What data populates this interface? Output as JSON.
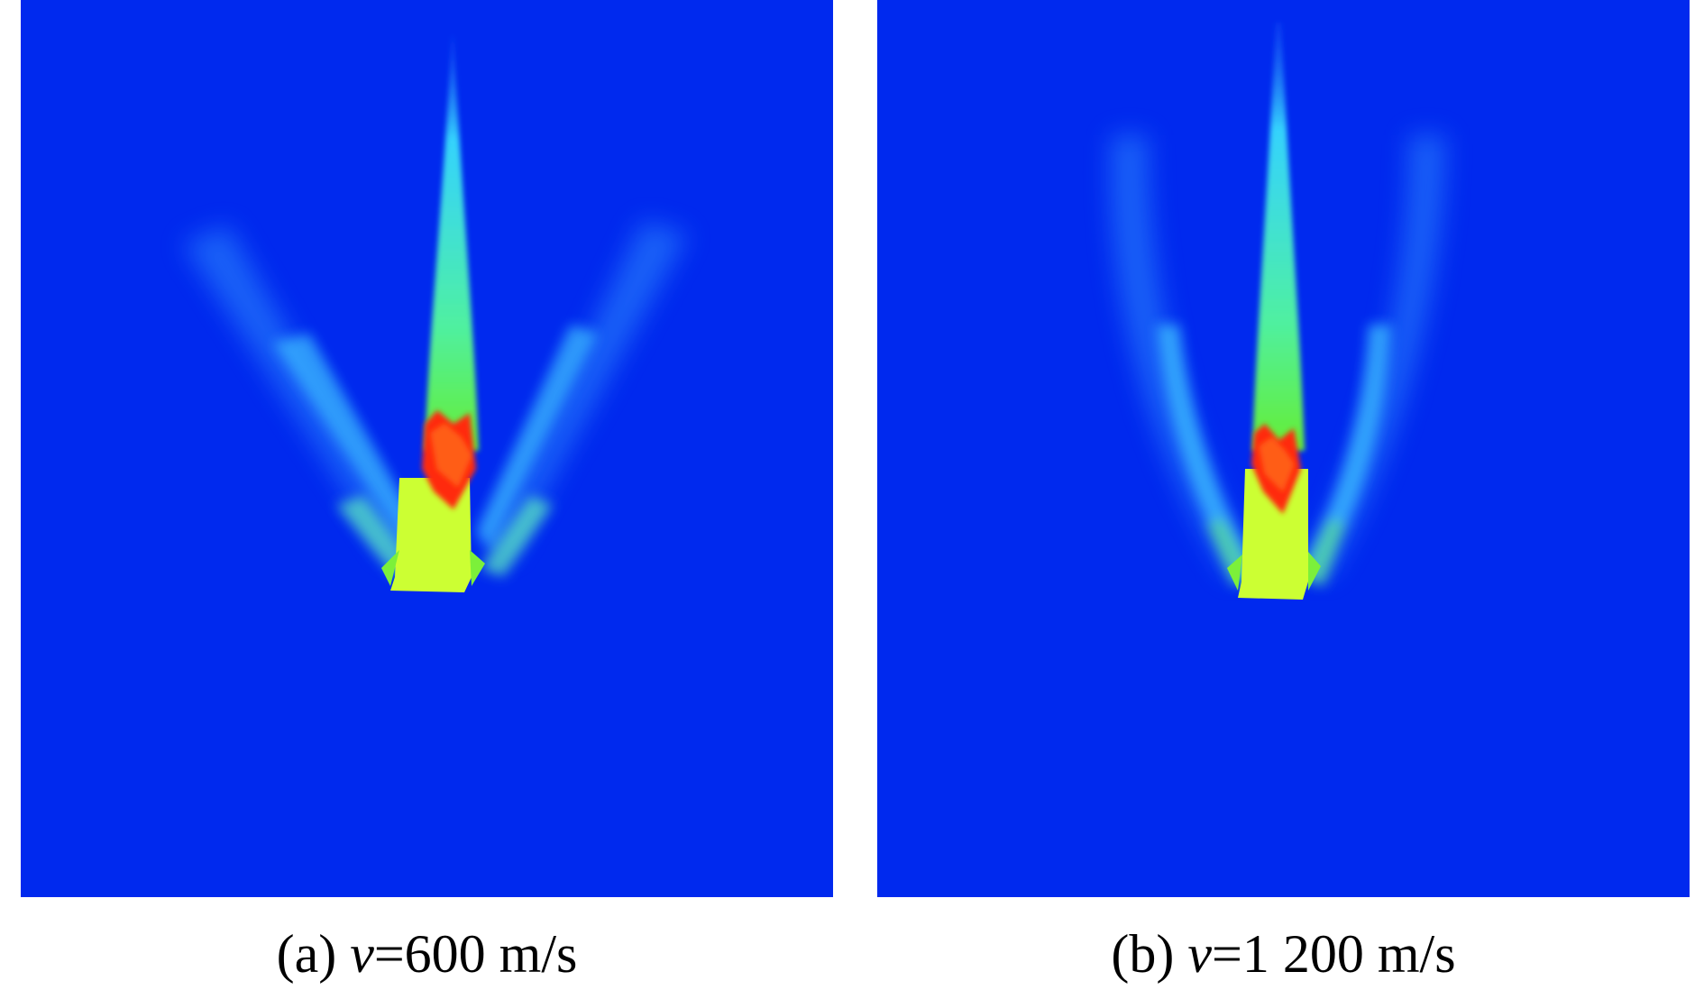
{
  "colors": {
    "background": "#0029ee",
    "cyan": "#3ef0ff",
    "green": "#5df04a",
    "yellow_green": "#ccff33",
    "red": "#ff2a10",
    "orange": "#ff6a1a"
  },
  "panels": [
    {
      "id": "a",
      "label_prefix": "(a) ",
      "label_var": "v",
      "label_value": "=600 m/s"
    },
    {
      "id": "b",
      "label_prefix": "(b) ",
      "label_var": "v",
      "label_value": "=1 200 m/s"
    }
  ]
}
